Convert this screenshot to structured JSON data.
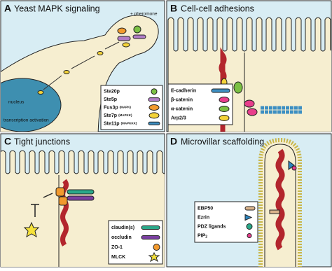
{
  "panels": [
    {
      "letter": "A",
      "title": "Yeast MAPK signaling",
      "annotations": [
        "+ pheromone",
        "nucleus",
        "transcription activation"
      ],
      "legend": [
        {
          "label": "Ste20p"
        },
        {
          "label": "Ste5p"
        },
        {
          "label": "Fus3p",
          "note": "(MAPK)"
        },
        {
          "label": "Ste7p",
          "note": "(MAPKK)"
        },
        {
          "label": "Ste11p",
          "note": "(MAPKKK)"
        }
      ]
    },
    {
      "letter": "B",
      "title": "Cell-cell adhesions",
      "legend": [
        {
          "label": "E-cadherin"
        },
        {
          "label": "β-catenin"
        },
        {
          "label": "α-catenin"
        },
        {
          "label": "Arp2/3"
        }
      ]
    },
    {
      "letter": "C",
      "title": "Tight junctions",
      "legend": [
        {
          "label": "claudin(s)"
        },
        {
          "label": "occludin"
        },
        {
          "label": "ZO-1"
        },
        {
          "label": "MLCK"
        }
      ]
    },
    {
      "letter": "D",
      "title": "Microvillar scaffolding",
      "legend": [
        {
          "label": "EBP50"
        },
        {
          "label": "Ezrin"
        },
        {
          "label": "PDZ ligands"
        },
        {
          "label": "PIP",
          "sub": "2"
        }
      ]
    }
  ]
}
